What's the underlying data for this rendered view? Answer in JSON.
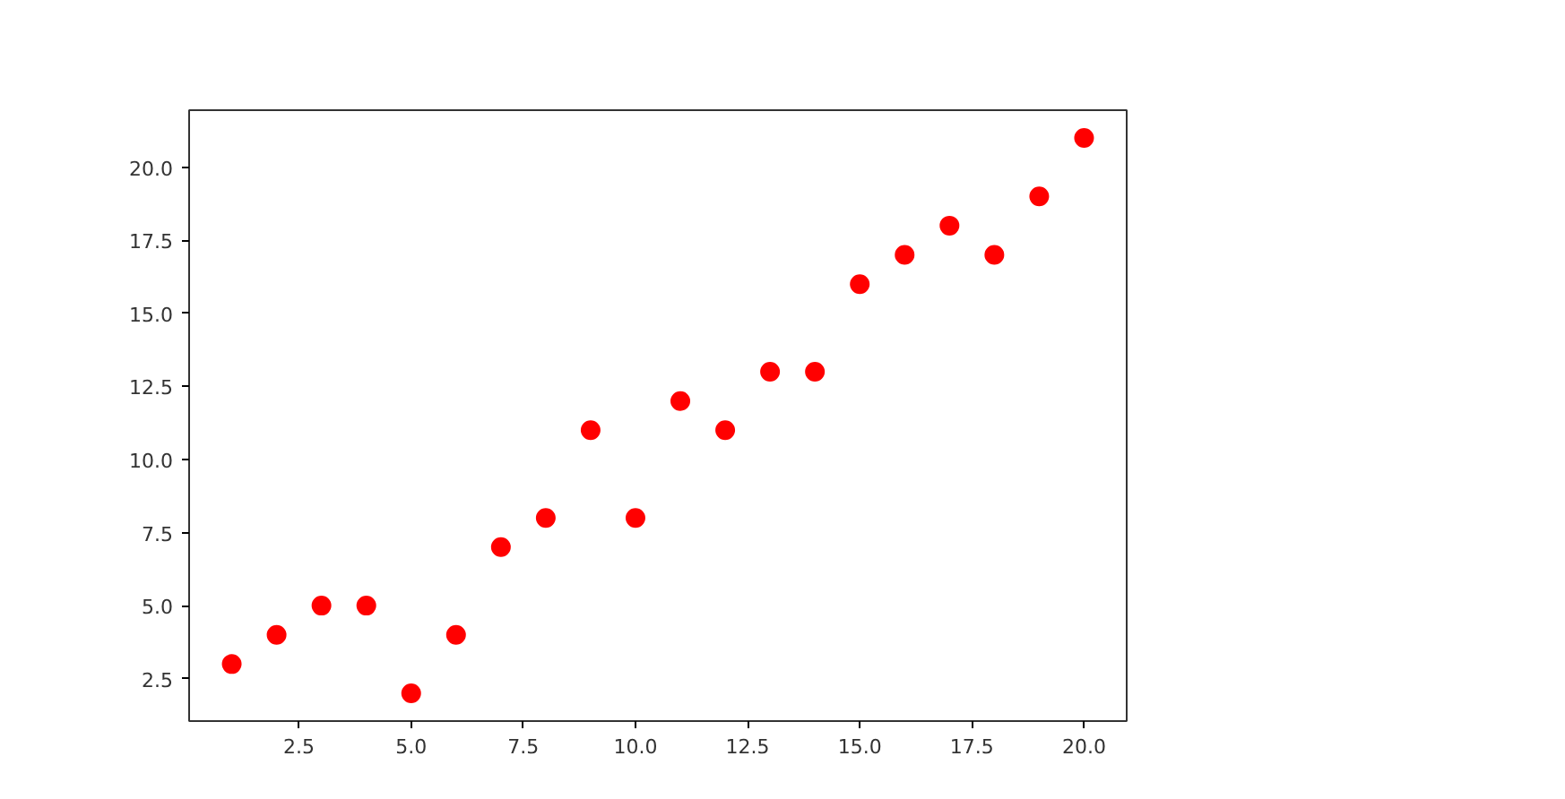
{
  "chart_data": {
    "type": "scatter",
    "x": [
      1,
      2,
      3,
      4,
      5,
      6,
      7,
      8,
      9,
      10,
      11,
      12,
      13,
      14,
      15,
      16,
      17,
      18,
      19,
      20
    ],
    "series": [
      {
        "color": "#ff0000",
        "values": [
          3,
          4,
          5,
          5,
          2,
          4,
          7,
          8,
          11,
          8,
          12,
          11,
          13,
          13,
          16,
          17,
          18,
          17,
          19,
          21
        ]
      }
    ],
    "xlim": [
      0.05,
      20.95
    ],
    "ylim": [
      1.05,
      21.95
    ],
    "xticks": [
      2.5,
      {
        "value": 5,
        "label": "5.0"
      },
      7.5,
      {
        "value": 10,
        "label": "10.0"
      },
      12.5,
      {
        "value": 15,
        "label": "15.0"
      },
      17.5,
      {
        "value": 20,
        "label": "20.0"
      }
    ],
    "yticks": [
      2.5,
      {
        "value": 5,
        "label": "5.0"
      },
      7.5,
      {
        "value": 10,
        "label": "10.0"
      },
      12.5,
      {
        "value": 15,
        "label": "15.0"
      },
      17.5,
      {
        "value": 20,
        "label": "20.0"
      }
    ],
    "grid": false,
    "marker": "circle"
  }
}
